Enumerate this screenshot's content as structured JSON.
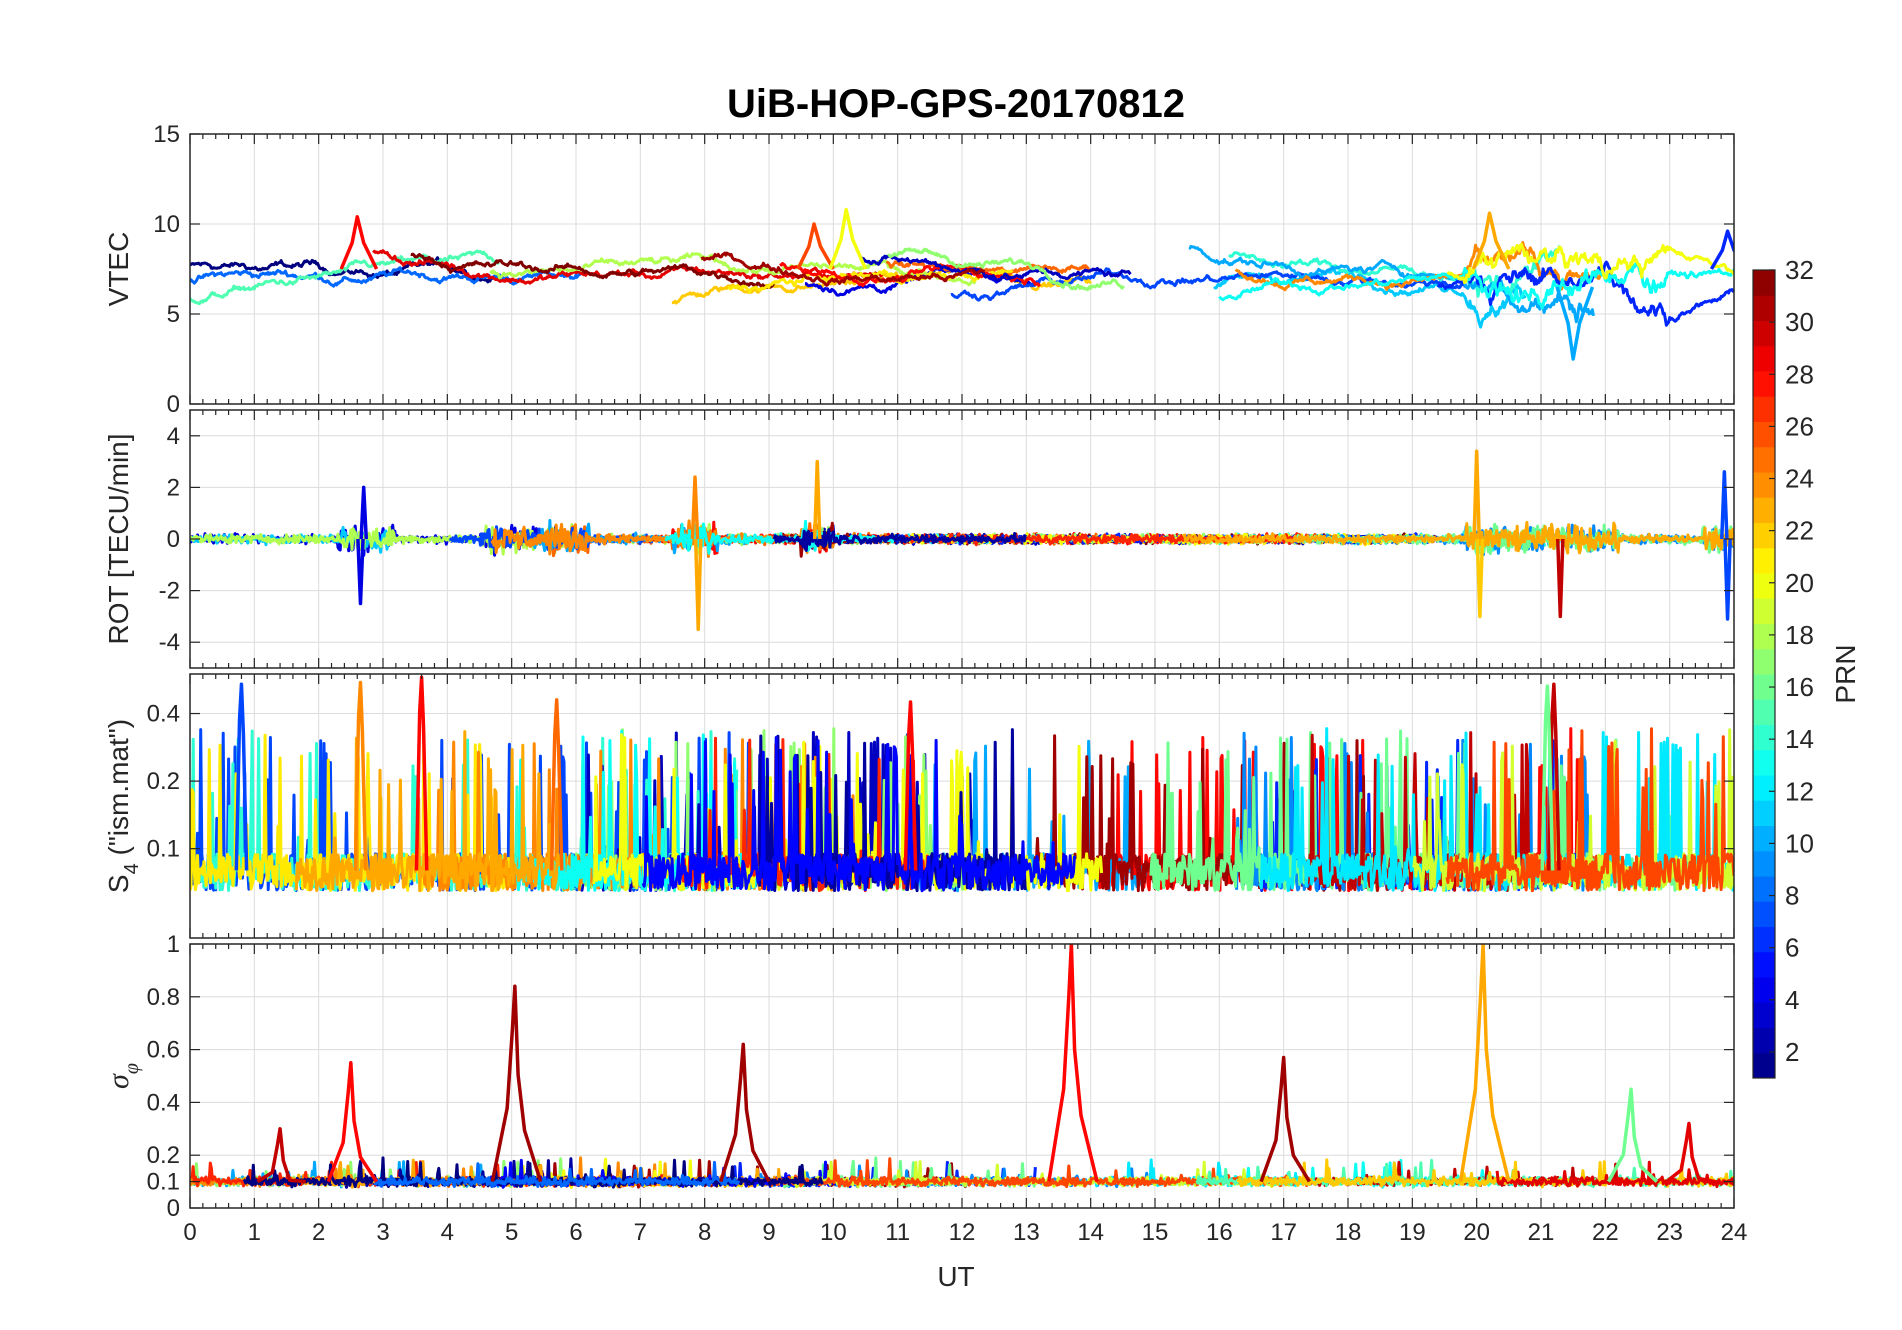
{
  "chart_data": {
    "type": "line",
    "title": "UiB-HOP-GPS-20170812",
    "xlabel": "UT",
    "xlim": [
      0,
      24
    ],
    "xticks": [
      "0",
      "1",
      "2",
      "3",
      "4",
      "5",
      "6",
      "7",
      "8",
      "9",
      "10",
      "11",
      "12",
      "13",
      "14",
      "15",
      "16",
      "17",
      "18",
      "19",
      "20",
      "21",
      "22",
      "23",
      "24"
    ],
    "grid": true,
    "colorbar": {
      "label": "PRN",
      "range": [
        1,
        32
      ],
      "ticks": [
        "2",
        "4",
        "6",
        "8",
        "10",
        "12",
        "14",
        "16",
        "18",
        "20",
        "22",
        "24",
        "26",
        "28",
        "30",
        "32"
      ],
      "colormap": "jet",
      "placement": "right"
    },
    "panels": [
      {
        "ylabel": "VTEC",
        "ylim": [
          0,
          15
        ],
        "yticks": [
          "0",
          "5",
          "10",
          "15"
        ],
        "baseline": 7.2,
        "spread": 1.6,
        "noise": 0.35,
        "kind": "vtec",
        "features": [
          {
            "x": 2.6,
            "y": 10.4,
            "prn": 28
          },
          {
            "x": 9.7,
            "y": 10.0,
            "prn": 26
          },
          {
            "x": 10.2,
            "y": 10.8,
            "prn": 20
          },
          {
            "x": 20.2,
            "y": 10.6,
            "prn": 23
          },
          {
            "x": 21.5,
            "y": 2.5,
            "prn": 10
          },
          {
            "x": 23.9,
            "y": 9.6,
            "prn": 6
          }
        ]
      },
      {
        "ylabel": "ROT [TECU/min]",
        "ylim": [
          -5,
          5
        ],
        "yticks": [
          "-4",
          "-2",
          "0",
          "2",
          "4"
        ],
        "kind": "rot",
        "spikes": [
          {
            "x": 2.65,
            "y": -2.5,
            "prn": 4
          },
          {
            "x": 2.7,
            "y": 2.0,
            "prn": 4
          },
          {
            "x": 7.9,
            "y": -3.5,
            "prn": 23
          },
          {
            "x": 7.85,
            "y": 2.4,
            "prn": 24
          },
          {
            "x": 9.75,
            "y": 3.0,
            "prn": 23
          },
          {
            "x": 20.0,
            "y": 3.4,
            "prn": 23
          },
          {
            "x": 20.05,
            "y": -3.0,
            "prn": 22
          },
          {
            "x": 21.3,
            "y": -3.0,
            "prn": 30
          },
          {
            "x": 23.9,
            "y": -3.1,
            "prn": 7
          },
          {
            "x": 23.85,
            "y": 2.6,
            "prn": 7
          }
        ]
      },
      {
        "ylabel": "S4 (\"ism.mat\")",
        "ylabel_main": "S",
        "ylabel_sub": "4",
        "ylabel_rest": " (\"ism.mat\")",
        "ylim": [
          0.04,
          0.6
        ],
        "yticks": [
          "0.1",
          "0.2",
          "0.4"
        ],
        "scale": "log",
        "kind": "s4",
        "spikes": [
          {
            "x": 0.8,
            "y": 0.54,
            "prn": 7
          },
          {
            "x": 2.65,
            "y": 0.55,
            "prn": 24
          },
          {
            "x": 3.6,
            "y": 0.58,
            "prn": 28
          },
          {
            "x": 5.7,
            "y": 0.46,
            "prn": 25
          },
          {
            "x": 11.2,
            "y": 0.45,
            "prn": 28
          },
          {
            "x": 21.2,
            "y": 0.54,
            "prn": 30
          },
          {
            "x": 21.1,
            "y": 0.53,
            "prn": 16
          }
        ]
      },
      {
        "ylabel": "σφ",
        "ylabel_main": "σ",
        "ylabel_sub": "φ",
        "ylim": [
          0,
          1
        ],
        "yticks": [
          "0",
          "0.1",
          "0.2",
          "0.4",
          "0.6",
          "0.8",
          "1"
        ],
        "kind": "sigma",
        "peaks": [
          {
            "x": 1.4,
            "y": 0.3,
            "prn": 30
          },
          {
            "x": 2.5,
            "y": 0.55,
            "prn": 28
          },
          {
            "x": 5.05,
            "y": 0.84,
            "prn": 31
          },
          {
            "x": 8.6,
            "y": 0.62,
            "prn": 31
          },
          {
            "x": 13.7,
            "y": 1.0,
            "prn": 28
          },
          {
            "x": 17.0,
            "y": 0.57,
            "prn": 31
          },
          {
            "x": 20.1,
            "y": 1.0,
            "prn": 23
          },
          {
            "x": 22.4,
            "y": 0.45,
            "prn": 16
          },
          {
            "x": 23.3,
            "y": 0.32,
            "prn": 29
          }
        ]
      }
    ]
  }
}
